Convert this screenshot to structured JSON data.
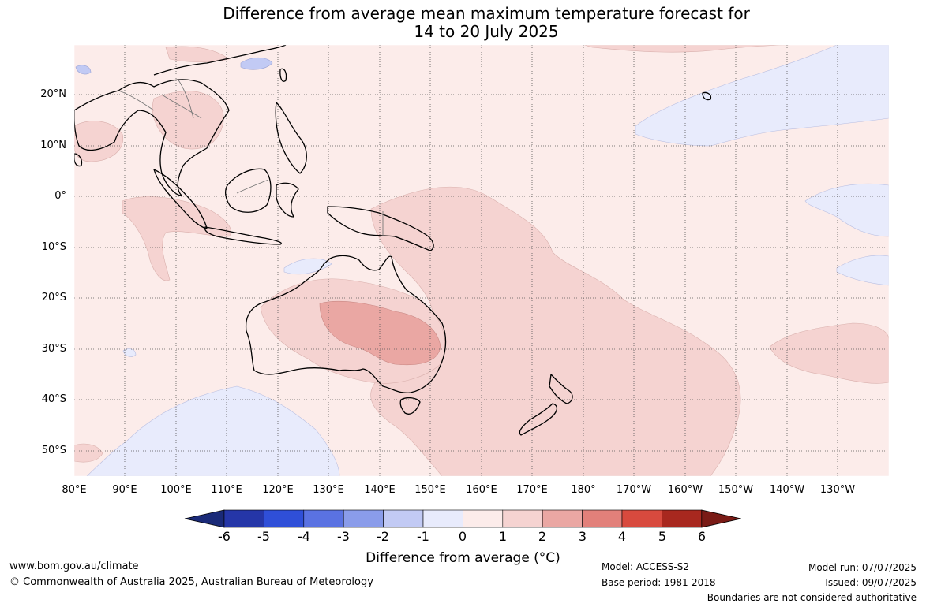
{
  "title_line1": "Difference from average mean maximum temperature forecast for",
  "title_line2": "14 to 20 July 2025",
  "lat_labels": [
    "20°N",
    "10°N",
    "0°",
    "10°S",
    "20°S",
    "30°S",
    "40°S",
    "50°S"
  ],
  "lon_labels": [
    "80°E",
    "90°E",
    "100°E",
    "110°E",
    "120°E",
    "130°E",
    "140°E",
    "150°E",
    "160°E",
    "170°E",
    "180°",
    "170°W",
    "160°W",
    "150°W",
    "140°W",
    "130°W"
  ],
  "colorbar": {
    "ticks": [
      "-6",
      "-5",
      "-4",
      "-3",
      "-2",
      "-1",
      "0",
      "1",
      "2",
      "3",
      "4",
      "5",
      "6"
    ],
    "colors": [
      "#1a2a78",
      "#2536a8",
      "#2f4fd8",
      "#5a72e2",
      "#8a9cea",
      "#c2caf4",
      "#e8ebfc",
      "#fcecea",
      "#f5d3d1",
      "#eaa7a3",
      "#e2807a",
      "#d84a3e",
      "#a8281f",
      "#7a1b16"
    ],
    "label": "Difference from average (°C)"
  },
  "map": {
    "background_color": "#fcecea",
    "anomaly_colors": {
      "slight_warm": "#fcecea",
      "warm": "#f5d3d1",
      "warmer": "#eaa7a3",
      "cool": "#e8ebfc",
      "cooler": "#c2caf4"
    }
  },
  "footer": {
    "website": "www.bom.gov.au/climate",
    "copyright": "© Commonwealth of Australia 2025, Australian Bureau of Meteorology",
    "model": "Model: ACCESS-S2",
    "base_period": "Base period: 1981-2018",
    "model_run": "Model run: 07/07/2025",
    "issued": "Issued: 09/07/2025",
    "boundaries_note": "Boundaries are not considered authoritative"
  }
}
